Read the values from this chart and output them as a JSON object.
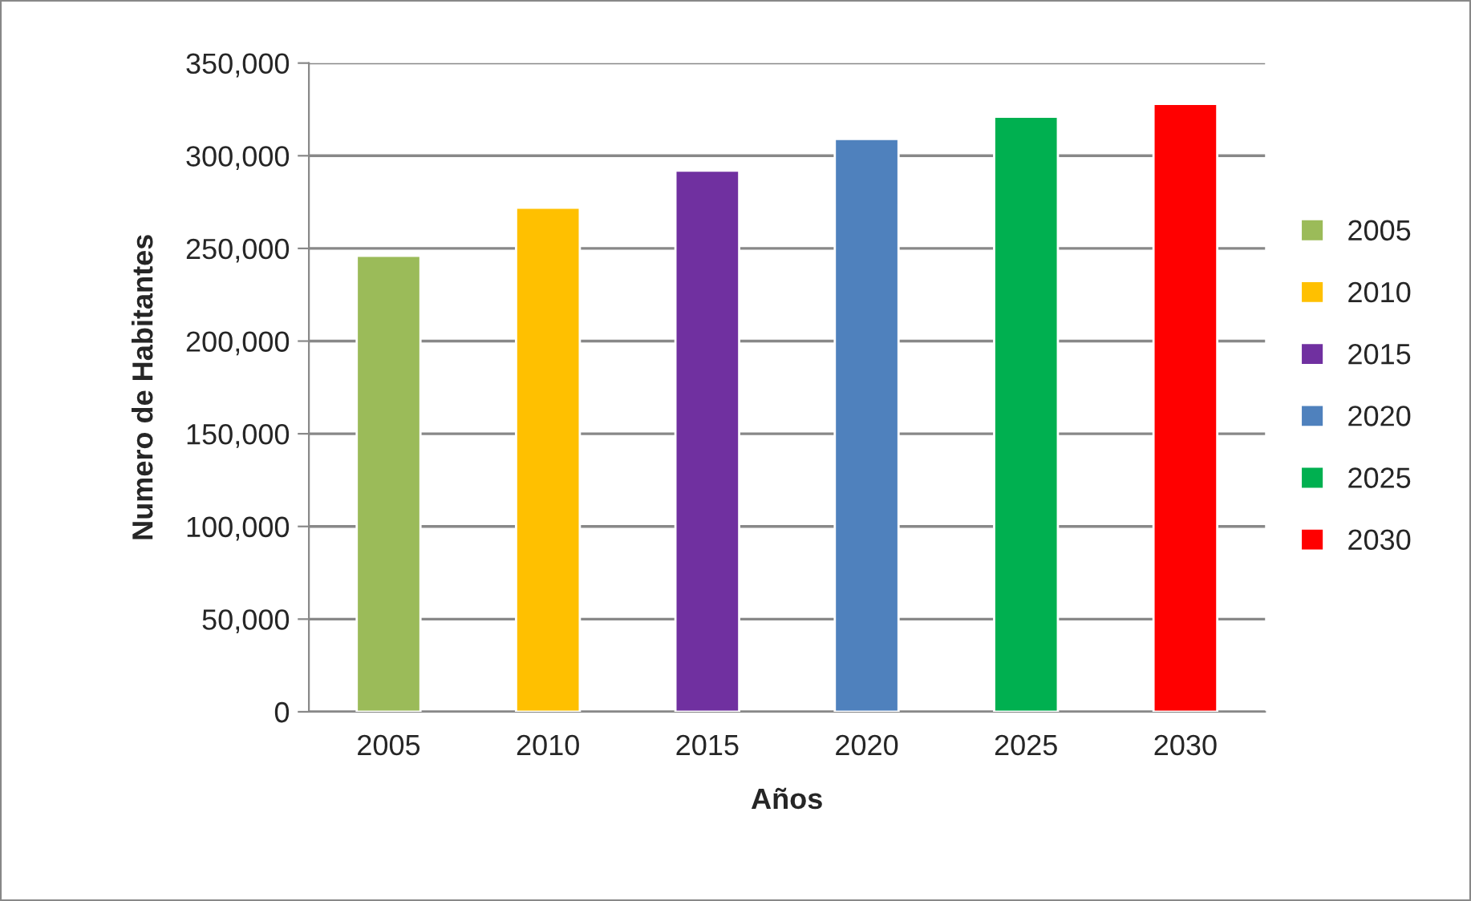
{
  "chart_data": {
    "type": "bar",
    "xlabel": "Años",
    "ylabel": "Numero de Habitantes",
    "categories": [
      "2005",
      "2010",
      "2015",
      "2020",
      "2025",
      "2030"
    ],
    "series": [
      {
        "name": "2005",
        "color": "#9bbb59",
        "values": [
          246000,
          null,
          null,
          null,
          null,
          null
        ]
      },
      {
        "name": "2010",
        "color": "#ffc000",
        "values": [
          null,
          272000,
          null,
          null,
          null,
          null
        ]
      },
      {
        "name": "2015",
        "color": "#7030a0",
        "values": [
          null,
          null,
          292000,
          null,
          null,
          null
        ]
      },
      {
        "name": "2020",
        "color": "#4f81bd",
        "values": [
          null,
          null,
          null,
          309000,
          null,
          null
        ]
      },
      {
        "name": "2025",
        "color": "#00b050",
        "values": [
          null,
          null,
          null,
          null,
          321000,
          null
        ]
      },
      {
        "name": "2030",
        "color": "#ff0000",
        "values": [
          null,
          null,
          null,
          null,
          null,
          328000
        ]
      }
    ],
    "ylim": [
      0,
      350000
    ],
    "yticks": [
      {
        "value": 0,
        "label": "0"
      },
      {
        "value": 50000,
        "label": "50,000"
      },
      {
        "value": 100000,
        "label": "100,000"
      },
      {
        "value": 150000,
        "label": "150,000"
      },
      {
        "value": 200000,
        "label": "200,000"
      },
      {
        "value": 250000,
        "label": "250,000"
      },
      {
        "value": 300000,
        "label": "300,000"
      },
      {
        "value": 350000,
        "label": "350,000"
      }
    ],
    "grid": "y",
    "legend": "right"
  }
}
